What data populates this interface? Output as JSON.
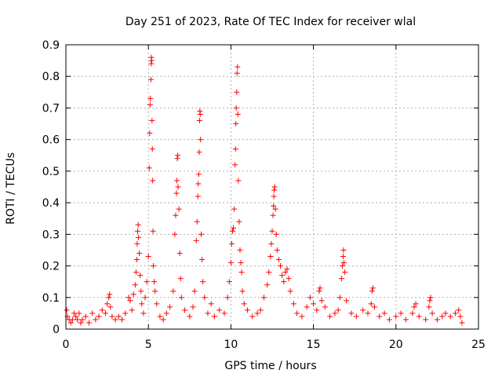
{
  "chart_data": {
    "type": "scatter",
    "title": "Day 251 of 2023, Rate Of TEC Index for receiver wlal",
    "xlabel": "GPS time / hours",
    "ylabel": "ROTI / TECUs",
    "xlim": [
      0,
      25
    ],
    "ylim": [
      0,
      0.9
    ],
    "xticks": [
      0,
      5,
      10,
      15,
      20,
      25
    ],
    "yticks": [
      0,
      0.1,
      0.2,
      0.3,
      0.4,
      0.5,
      0.6,
      0.7,
      0.8,
      0.9
    ],
    "ytick_labels": [
      "0",
      "0.1",
      "0.2",
      "0.3",
      "0.4",
      "0.5",
      "0.6",
      "0.7",
      "0.8",
      "0.9"
    ],
    "grid": true,
    "marker": "plus",
    "marker_color": "#ff0000",
    "points": [
      [
        0.05,
        0.06
      ],
      [
        0.1,
        0.04
      ],
      [
        0.2,
        0.03
      ],
      [
        0.3,
        0.02
      ],
      [
        0.4,
        0.03
      ],
      [
        0.5,
        0.05
      ],
      [
        0.6,
        0.04
      ],
      [
        0.7,
        0.03
      ],
      [
        0.8,
        0.05
      ],
      [
        0.9,
        0.02
      ],
      [
        1.0,
        0.03
      ],
      [
        1.2,
        0.04
      ],
      [
        1.4,
        0.02
      ],
      [
        1.6,
        0.05
      ],
      [
        1.8,
        0.03
      ],
      [
        2.0,
        0.04
      ],
      [
        2.2,
        0.06
      ],
      [
        2.4,
        0.05
      ],
      [
        2.5,
        0.08
      ],
      [
        2.6,
        0.1
      ],
      [
        2.65,
        0.11
      ],
      [
        2.7,
        0.07
      ],
      [
        2.8,
        0.04
      ],
      [
        3.0,
        0.03
      ],
      [
        3.2,
        0.04
      ],
      [
        3.4,
        0.03
      ],
      [
        3.6,
        0.05
      ],
      [
        3.8,
        0.1
      ],
      [
        3.9,
        0.09
      ],
      [
        4.0,
        0.06
      ],
      [
        4.1,
        0.11
      ],
      [
        4.2,
        0.14
      ],
      [
        4.25,
        0.18
      ],
      [
        4.3,
        0.22
      ],
      [
        4.32,
        0.27
      ],
      [
        4.35,
        0.31
      ],
      [
        4.38,
        0.33
      ],
      [
        4.4,
        0.29
      ],
      [
        4.45,
        0.24
      ],
      [
        4.5,
        0.17
      ],
      [
        4.55,
        0.12
      ],
      [
        4.6,
        0.08
      ],
      [
        4.7,
        0.05
      ],
      [
        4.8,
        0.1
      ],
      [
        4.9,
        0.15
      ],
      [
        5.0,
        0.23
      ],
      [
        5.05,
        0.51
      ],
      [
        5.08,
        0.62
      ],
      [
        5.1,
        0.71
      ],
      [
        5.12,
        0.73
      ],
      [
        5.15,
        0.79
      ],
      [
        5.17,
        0.84
      ],
      [
        5.18,
        0.86
      ],
      [
        5.2,
        0.85
      ],
      [
        5.22,
        0.66
      ],
      [
        5.24,
        0.57
      ],
      [
        5.26,
        0.47
      ],
      [
        5.28,
        0.31
      ],
      [
        5.3,
        0.2
      ],
      [
        5.35,
        0.15
      ],
      [
        5.4,
        0.12
      ],
      [
        5.5,
        0.08
      ],
      [
        5.7,
        0.04
      ],
      [
        5.9,
        0.03
      ],
      [
        6.1,
        0.05
      ],
      [
        6.3,
        0.07
      ],
      [
        6.5,
        0.12
      ],
      [
        6.6,
        0.3
      ],
      [
        6.65,
        0.36
      ],
      [
        6.7,
        0.43
      ],
      [
        6.72,
        0.47
      ],
      [
        6.75,
        0.54
      ],
      [
        6.78,
        0.55
      ],
      [
        6.8,
        0.45
      ],
      [
        6.85,
        0.38
      ],
      [
        6.9,
        0.24
      ],
      [
        6.95,
        0.16
      ],
      [
        7.0,
        0.1
      ],
      [
        7.2,
        0.06
      ],
      [
        7.5,
        0.04
      ],
      [
        7.7,
        0.07
      ],
      [
        7.8,
        0.12
      ],
      [
        7.9,
        0.28
      ],
      [
        7.95,
        0.34
      ],
      [
        8.0,
        0.42
      ],
      [
        8.02,
        0.46
      ],
      [
        8.05,
        0.49
      ],
      [
        8.08,
        0.56
      ],
      [
        8.1,
        0.66
      ],
      [
        8.12,
        0.69
      ],
      [
        8.14,
        0.68
      ],
      [
        8.16,
        0.6
      ],
      [
        8.2,
        0.3
      ],
      [
        8.25,
        0.22
      ],
      [
        8.3,
        0.15
      ],
      [
        8.4,
        0.1
      ],
      [
        8.6,
        0.05
      ],
      [
        8.8,
        0.08
      ],
      [
        9.0,
        0.04
      ],
      [
        9.3,
        0.06
      ],
      [
        9.6,
        0.05
      ],
      [
        9.8,
        0.1
      ],
      [
        9.9,
        0.15
      ],
      [
        10.0,
        0.21
      ],
      [
        10.05,
        0.27
      ],
      [
        10.1,
        0.31
      ],
      [
        10.15,
        0.32
      ],
      [
        10.2,
        0.38
      ],
      [
        10.25,
        0.52
      ],
      [
        10.28,
        0.57
      ],
      [
        10.3,
        0.65
      ],
      [
        10.32,
        0.7
      ],
      [
        10.35,
        0.75
      ],
      [
        10.37,
        0.81
      ],
      [
        10.4,
        0.83
      ],
      [
        10.42,
        0.68
      ],
      [
        10.45,
        0.47
      ],
      [
        10.5,
        0.34
      ],
      [
        10.55,
        0.25
      ],
      [
        10.6,
        0.21
      ],
      [
        10.65,
        0.18
      ],
      [
        10.7,
        0.12
      ],
      [
        10.8,
        0.08
      ],
      [
        11.0,
        0.06
      ],
      [
        11.3,
        0.04
      ],
      [
        11.6,
        0.05
      ],
      [
        11.8,
        0.06
      ],
      [
        12.0,
        0.1
      ],
      [
        12.2,
        0.14
      ],
      [
        12.3,
        0.18
      ],
      [
        12.4,
        0.23
      ],
      [
        12.45,
        0.27
      ],
      [
        12.5,
        0.31
      ],
      [
        12.55,
        0.36
      ],
      [
        12.58,
        0.39
      ],
      [
        12.6,
        0.42
      ],
      [
        12.62,
        0.44
      ],
      [
        12.65,
        0.45
      ],
      [
        12.7,
        0.38
      ],
      [
        12.75,
        0.3
      ],
      [
        12.8,
        0.25
      ],
      [
        12.9,
        0.22
      ],
      [
        13.0,
        0.2
      ],
      [
        13.1,
        0.17
      ],
      [
        13.2,
        0.15
      ],
      [
        13.3,
        0.18
      ],
      [
        13.4,
        0.19
      ],
      [
        13.5,
        0.16
      ],
      [
        13.6,
        0.12
      ],
      [
        13.8,
        0.08
      ],
      [
        14.0,
        0.05
      ],
      [
        14.3,
        0.04
      ],
      [
        14.6,
        0.07
      ],
      [
        14.8,
        0.1
      ],
      [
        15.0,
        0.08
      ],
      [
        15.2,
        0.06
      ],
      [
        15.35,
        0.12
      ],
      [
        15.4,
        0.13
      ],
      [
        15.5,
        0.09
      ],
      [
        15.7,
        0.07
      ],
      [
        16.0,
        0.04
      ],
      [
        16.3,
        0.05
      ],
      [
        16.5,
        0.06
      ],
      [
        16.6,
        0.1
      ],
      [
        16.7,
        0.16
      ],
      [
        16.75,
        0.2
      ],
      [
        16.8,
        0.23
      ],
      [
        16.82,
        0.25
      ],
      [
        16.85,
        0.21
      ],
      [
        16.9,
        0.18
      ],
      [
        17.0,
        0.09
      ],
      [
        17.3,
        0.05
      ],
      [
        17.6,
        0.04
      ],
      [
        18.0,
        0.06
      ],
      [
        18.3,
        0.05
      ],
      [
        18.5,
        0.08
      ],
      [
        18.55,
        0.12
      ],
      [
        18.6,
        0.13
      ],
      [
        18.7,
        0.07
      ],
      [
        19.0,
        0.04
      ],
      [
        19.3,
        0.05
      ],
      [
        19.6,
        0.03
      ],
      [
        20.0,
        0.04
      ],
      [
        20.3,
        0.05
      ],
      [
        20.6,
        0.03
      ],
      [
        21.0,
        0.05
      ],
      [
        21.1,
        0.07
      ],
      [
        21.2,
        0.08
      ],
      [
        21.4,
        0.04
      ],
      [
        21.8,
        0.03
      ],
      [
        22.0,
        0.07
      ],
      [
        22.05,
        0.09
      ],
      [
        22.1,
        0.1
      ],
      [
        22.2,
        0.05
      ],
      [
        22.5,
        0.03
      ],
      [
        22.8,
        0.04
      ],
      [
        23.0,
        0.05
      ],
      [
        23.3,
        0.04
      ],
      [
        23.6,
        0.05
      ],
      [
        23.8,
        0.06
      ],
      [
        23.9,
        0.04
      ],
      [
        24.0,
        0.02
      ]
    ]
  }
}
